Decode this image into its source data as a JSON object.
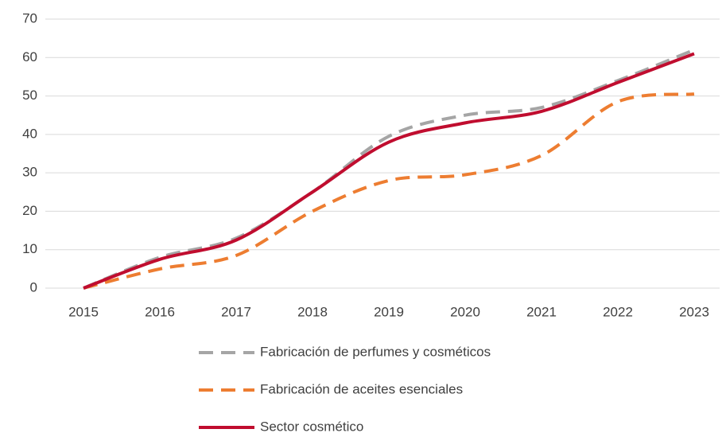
{
  "chart_data": {
    "type": "line",
    "categories": [
      "2015",
      "2016",
      "2017",
      "2018",
      "2019",
      "2020",
      "2021",
      "2022",
      "2023"
    ],
    "series": [
      {
        "name": "Fabricación de perfumes y cosméticos",
        "color": "#a5a5a5",
        "line_style": "dashed",
        "values": [
          0,
          8,
          13,
          25,
          39.5,
          45,
          47,
          54,
          62
        ]
      },
      {
        "name": "Fabricación de aceites esenciales",
        "color": "#ed7d31",
        "line_style": "dashed",
        "values": [
          0,
          5,
          8.5,
          20,
          28,
          29.5,
          34.5,
          48.5,
          50.5
        ]
      },
      {
        "name": "Sector cosmético",
        "color": "#c00d2f",
        "line_style": "solid",
        "values": [
          0,
          7.5,
          12.5,
          25,
          38,
          43,
          46,
          53.5,
          61
        ]
      }
    ],
    "ylim": [
      0,
      70
    ],
    "yticks": [
      0,
      10,
      20,
      30,
      40,
      50,
      60,
      70
    ],
    "grid": true,
    "legend": "bottom"
  }
}
